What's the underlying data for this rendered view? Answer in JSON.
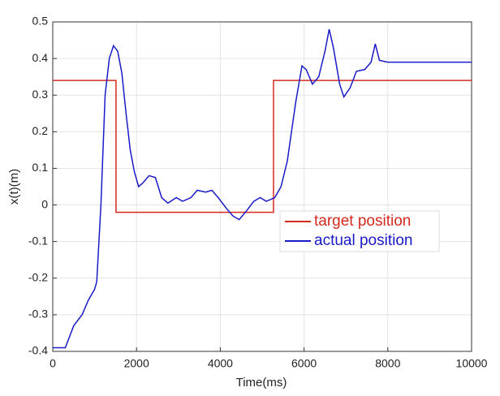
{
  "chart_data": {
    "type": "line",
    "xlabel": "Time(ms)",
    "ylabel": "x(t)(m)",
    "xlim": [
      0,
      10000
    ],
    "xticks": [
      0,
      2000,
      4000,
      6000,
      8000,
      10000
    ],
    "ylim": [
      -0.4,
      0.5
    ],
    "yticks": [
      -0.4,
      -0.3,
      -0.2,
      -0.1,
      0,
      0.1,
      0.2,
      0.3,
      0.4,
      0.5
    ],
    "grid": true,
    "legend": "right",
    "series": [
      {
        "name": "target position",
        "color": "#d42a1e",
        "x": [
          0,
          1510,
          1510,
          5270,
          5270,
          10000
        ],
        "values": [
          0.34,
          0.34,
          -0.02,
          -0.02,
          0.34,
          0.34
        ]
      },
      {
        "name": "actual position",
        "color": "#1a1ac8",
        "x": [
          0,
          300,
          500,
          700,
          850,
          1000,
          1050,
          1150,
          1250,
          1350,
          1450,
          1550,
          1650,
          1750,
          1850,
          1950,
          2050,
          2150,
          2300,
          2450,
          2600,
          2750,
          2950,
          3100,
          3300,
          3450,
          3650,
          3800,
          3950,
          4150,
          4300,
          4450,
          4600,
          4800,
          4950,
          5100,
          5300,
          5450,
          5600,
          5800,
          5950,
          6050,
          6200,
          6350,
          6500,
          6600,
          6700,
          6850,
          6950,
          7100,
          7250,
          7450,
          7600,
          7700,
          7800,
          8000,
          10000
        ],
        "values": [
          -0.39,
          -0.39,
          -0.33,
          -0.3,
          -0.26,
          -0.23,
          -0.21,
          0.0,
          0.3,
          0.4,
          0.435,
          0.42,
          0.36,
          0.25,
          0.15,
          0.09,
          0.05,
          0.06,
          0.08,
          0.075,
          0.02,
          0.005,
          0.02,
          0.01,
          0.02,
          0.04,
          0.035,
          0.04,
          0.02,
          -0.01,
          -0.03,
          -0.04,
          -0.02,
          0.01,
          0.02,
          0.01,
          0.02,
          0.05,
          0.12,
          0.28,
          0.38,
          0.37,
          0.33,
          0.35,
          0.42,
          0.48,
          0.43,
          0.33,
          0.295,
          0.32,
          0.365,
          0.37,
          0.39,
          0.44,
          0.395,
          0.39,
          0.39
        ]
      }
    ]
  }
}
